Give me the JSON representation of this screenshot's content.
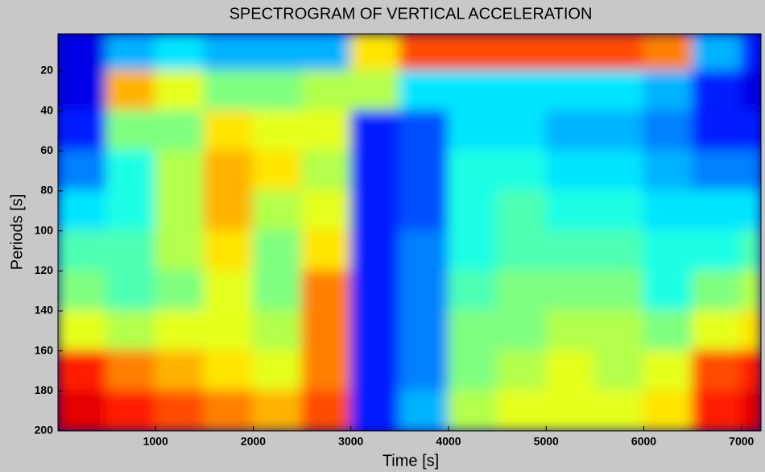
{
  "chart_data": {
    "type": "heatmap",
    "title": "SPECTROGRAM OF VERTICAL ACCELERATION",
    "x_label": "Time [s]",
    "y_label": "Periods [s]",
    "xbins": [
      0,
      500,
      1000,
      1500,
      2000,
      2500,
      3000,
      3500,
      4000,
      4500,
      5000,
      5500,
      6000,
      6500,
      7000,
      7200
    ],
    "ybins": [
      1.5,
      20,
      40,
      60,
      80,
      100,
      120,
      140,
      160,
      180,
      200
    ],
    "z": [
      [
        0.1,
        0.1,
        0.15,
        0.25,
        0.35,
        0.45,
        0.5,
        0.6,
        0.85,
        0.9
      ],
      [
        0.3,
        0.7,
        0.5,
        0.4,
        0.4,
        0.45,
        0.45,
        0.55,
        0.75,
        0.85
      ],
      [
        0.35,
        0.6,
        0.5,
        0.55,
        0.55,
        0.55,
        0.5,
        0.6,
        0.7,
        0.8
      ],
      [
        0.3,
        0.5,
        0.65,
        0.7,
        0.7,
        0.65,
        0.6,
        0.6,
        0.65,
        0.75
      ],
      [
        0.3,
        0.5,
        0.6,
        0.65,
        0.55,
        0.5,
        0.5,
        0.55,
        0.6,
        0.7
      ],
      [
        0.3,
        0.55,
        0.6,
        0.55,
        0.6,
        0.65,
        0.75,
        0.75,
        0.75,
        0.8
      ],
      [
        0.65,
        0.55,
        0.15,
        0.15,
        0.15,
        0.15,
        0.15,
        0.15,
        0.15,
        0.15
      ],
      [
        0.8,
        0.35,
        0.2,
        0.2,
        0.2,
        0.25,
        0.25,
        0.25,
        0.25,
        0.3
      ],
      [
        0.8,
        0.35,
        0.35,
        0.4,
        0.4,
        0.4,
        0.45,
        0.5,
        0.5,
        0.55
      ],
      [
        0.8,
        0.35,
        0.35,
        0.4,
        0.45,
        0.45,
        0.5,
        0.5,
        0.55,
        0.6
      ],
      [
        0.8,
        0.35,
        0.3,
        0.35,
        0.4,
        0.45,
        0.5,
        0.55,
        0.6,
        0.6
      ],
      [
        0.8,
        0.35,
        0.3,
        0.35,
        0.4,
        0.45,
        0.5,
        0.55,
        0.55,
        0.6
      ],
      [
        0.75,
        0.3,
        0.25,
        0.3,
        0.35,
        0.4,
        0.4,
        0.5,
        0.6,
        0.65
      ],
      [
        0.3,
        0.15,
        0.15,
        0.25,
        0.35,
        0.4,
        0.5,
        0.6,
        0.8,
        0.85
      ],
      [
        0.15,
        0.1,
        0.15,
        0.25,
        0.35,
        0.45,
        0.55,
        0.65,
        0.85,
        0.9
      ]
    ],
    "colormap": "jet",
    "xlim": [
      0,
      7200
    ],
    "ylim": [
      1.5,
      200
    ],
    "y_reversed": true,
    "xticks": [
      1000,
      2000,
      3000,
      4000,
      5000,
      6000,
      7000
    ],
    "yticks": [
      20,
      40,
      60,
      80,
      100,
      120,
      140,
      160,
      180,
      200
    ]
  }
}
